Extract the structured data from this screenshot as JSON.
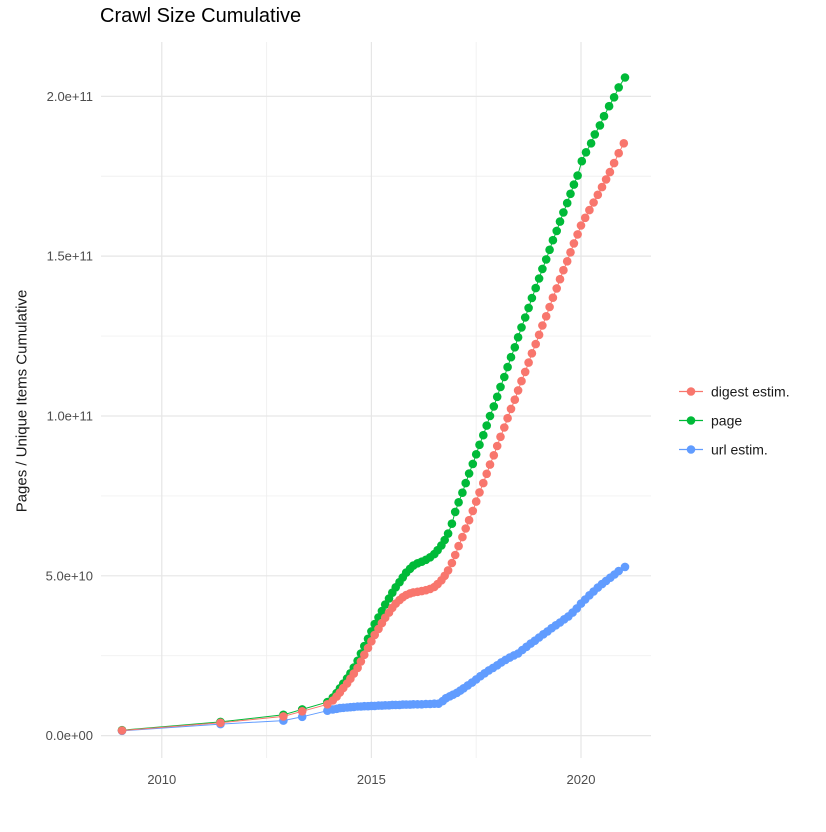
{
  "title": "Crawl Size Cumulative",
  "y_axis_title": "Pages / Unique Items Cumulative",
  "legend": {
    "position": "right",
    "items": [
      {
        "label": "digest estim.",
        "color": "#F8766D"
      },
      {
        "label": "page",
        "color": "#00BA38"
      },
      {
        "label": "url estim.",
        "color": "#619CFF"
      }
    ]
  },
  "colors": {
    "digest": "#F8766D",
    "page": "#00BA38",
    "url": "#619CFF",
    "grid_major": "#e6e6e6",
    "grid_minor": "#f0f0f0",
    "tick_text": "#4d4d4d",
    "title_text": "#000000"
  },
  "chart_data": {
    "type": "line",
    "title": "Crawl Size Cumulative",
    "xlabel": "",
    "ylabel": "Pages / Unique Items Cumulative",
    "grid": true,
    "legend_position": "right",
    "value_unit": "1e9 pages (values below are billions)",
    "xlim": [
      2008.55,
      2021.67
    ],
    "ylim_e9": [
      -7,
      217
    ],
    "x_ticks": {
      "values": [
        2010,
        2015,
        2020
      ],
      "labels": [
        "2010",
        "2015",
        "2020"
      ]
    },
    "x_minor": [
      2012.5,
      2017.5
    ],
    "y_ticks": {
      "values_e9": [
        0,
        50,
        100,
        150,
        200
      ],
      "labels": [
        "0.0e+00",
        "5.0e+10",
        "1.0e+11",
        "1.5e+11",
        "2.0e+11"
      ]
    },
    "y_minor_e9": [
      25,
      75,
      125,
      175
    ],
    "series": [
      {
        "name": "url estim.",
        "color": "#619CFF",
        "points": [
          [
            2009.05,
            1.5
          ],
          [
            2011.4,
            3.6
          ],
          [
            2012.9,
            4.7
          ],
          [
            2013.35,
            5.9
          ],
          [
            2013.95,
            7.8
          ],
          [
            2014.08,
            8.2
          ],
          [
            2014.17,
            8.4
          ],
          [
            2014.25,
            8.6
          ],
          [
            2014.33,
            8.7
          ],
          [
            2014.42,
            8.8
          ],
          [
            2014.5,
            8.9
          ],
          [
            2014.58,
            9.0
          ],
          [
            2014.67,
            9.1
          ],
          [
            2014.75,
            9.1
          ],
          [
            2014.83,
            9.2
          ],
          [
            2014.92,
            9.2
          ],
          [
            2015.0,
            9.3
          ],
          [
            2015.08,
            9.3
          ],
          [
            2015.17,
            9.4
          ],
          [
            2015.25,
            9.4
          ],
          [
            2015.33,
            9.5
          ],
          [
            2015.42,
            9.5
          ],
          [
            2015.5,
            9.6
          ],
          [
            2015.58,
            9.6
          ],
          [
            2015.67,
            9.6
          ],
          [
            2015.75,
            9.7
          ],
          [
            2015.83,
            9.7
          ],
          [
            2015.92,
            9.7
          ],
          [
            2016.0,
            9.8
          ],
          [
            2016.1,
            9.8
          ],
          [
            2016.2,
            9.8
          ],
          [
            2016.3,
            9.9
          ],
          [
            2016.4,
            9.9
          ],
          [
            2016.5,
            10.0
          ],
          [
            2016.6,
            10.0
          ],
          [
            2016.7,
            10.8
          ],
          [
            2016.78,
            11.7
          ],
          [
            2016.87,
            12.3
          ],
          [
            2016.95,
            12.8
          ],
          [
            2017.04,
            13.4
          ],
          [
            2017.12,
            14.1
          ],
          [
            2017.2,
            14.8
          ],
          [
            2017.3,
            15.7
          ],
          [
            2017.4,
            16.6
          ],
          [
            2017.5,
            17.6
          ],
          [
            2017.6,
            18.6
          ],
          [
            2017.7,
            19.5
          ],
          [
            2017.8,
            20.4
          ],
          [
            2017.9,
            21.2
          ],
          [
            2018.0,
            22.0
          ],
          [
            2018.1,
            22.9
          ],
          [
            2018.2,
            23.7
          ],
          [
            2018.3,
            24.4
          ],
          [
            2018.4,
            25.1
          ],
          [
            2018.5,
            25.7
          ],
          [
            2018.6,
            26.8
          ],
          [
            2018.7,
            27.8
          ],
          [
            2018.8,
            28.8
          ],
          [
            2018.9,
            29.7
          ],
          [
            2019.0,
            30.7
          ],
          [
            2019.1,
            31.7
          ],
          [
            2019.2,
            32.6
          ],
          [
            2019.3,
            33.6
          ],
          [
            2019.4,
            34.5
          ],
          [
            2019.5,
            35.4
          ],
          [
            2019.6,
            36.4
          ],
          [
            2019.7,
            37.3
          ],
          [
            2019.8,
            38.5
          ],
          [
            2019.9,
            39.8
          ],
          [
            2020.0,
            41.3
          ],
          [
            2020.1,
            42.6
          ],
          [
            2020.2,
            43.9
          ],
          [
            2020.3,
            45.1
          ],
          [
            2020.4,
            46.3
          ],
          [
            2020.5,
            47.4
          ],
          [
            2020.6,
            48.4
          ],
          [
            2020.7,
            49.4
          ],
          [
            2020.8,
            50.4
          ],
          [
            2020.9,
            51.5
          ],
          [
            2021.05,
            52.8
          ]
        ]
      },
      {
        "name": "page",
        "color": "#00BA38",
        "points": [
          [
            2009.05,
            1.7
          ],
          [
            2011.4,
            4.3
          ],
          [
            2012.9,
            6.5
          ],
          [
            2013.35,
            8.2
          ],
          [
            2013.95,
            10.5
          ],
          [
            2014.08,
            11.9
          ],
          [
            2014.17,
            13.3
          ],
          [
            2014.25,
            14.8
          ],
          [
            2014.33,
            16.3
          ],
          [
            2014.42,
            17.9
          ],
          [
            2014.5,
            19.5
          ],
          [
            2014.58,
            21.3
          ],
          [
            2014.67,
            23.4
          ],
          [
            2014.75,
            25.7
          ],
          [
            2014.83,
            28.0
          ],
          [
            2014.92,
            30.3
          ],
          [
            2015.0,
            32.6
          ],
          [
            2015.08,
            34.9
          ],
          [
            2015.17,
            37.0
          ],
          [
            2015.25,
            39.0
          ],
          [
            2015.33,
            41.0
          ],
          [
            2015.42,
            42.9
          ],
          [
            2015.5,
            44.7
          ],
          [
            2015.58,
            46.4
          ],
          [
            2015.67,
            48.0
          ],
          [
            2015.75,
            49.5
          ],
          [
            2015.83,
            51.0
          ],
          [
            2015.92,
            52.2
          ],
          [
            2016.0,
            53.2
          ],
          [
            2016.1,
            53.9
          ],
          [
            2016.2,
            54.4
          ],
          [
            2016.3,
            55.0
          ],
          [
            2016.4,
            55.8
          ],
          [
            2016.5,
            56.8
          ],
          [
            2016.58,
            58.0
          ],
          [
            2016.67,
            59.5
          ],
          [
            2016.75,
            61.2
          ],
          [
            2016.83,
            63.2
          ],
          [
            2016.92,
            66.3
          ],
          [
            2017.0,
            70.0
          ],
          [
            2017.08,
            73.0
          ],
          [
            2017.17,
            76.0
          ],
          [
            2017.25,
            79.0
          ],
          [
            2017.33,
            82.0
          ],
          [
            2017.42,
            85.0
          ],
          [
            2017.5,
            88.0
          ],
          [
            2017.58,
            91.0
          ],
          [
            2017.67,
            94.0
          ],
          [
            2017.75,
            97.0
          ],
          [
            2017.83,
            100.0
          ],
          [
            2017.92,
            103.0
          ],
          [
            2018.0,
            106.0
          ],
          [
            2018.08,
            109.1
          ],
          [
            2018.17,
            112.2
          ],
          [
            2018.25,
            115.3
          ],
          [
            2018.33,
            118.4
          ],
          [
            2018.42,
            121.5
          ],
          [
            2018.5,
            124.6
          ],
          [
            2018.58,
            127.7
          ],
          [
            2018.67,
            130.8
          ],
          [
            2018.75,
            133.8
          ],
          [
            2018.83,
            136.9
          ],
          [
            2018.92,
            140.0
          ],
          [
            2019.0,
            143.0
          ],
          [
            2019.08,
            146.0
          ],
          [
            2019.17,
            149.0
          ],
          [
            2019.25,
            152.0
          ],
          [
            2019.33,
            155.0
          ],
          [
            2019.42,
            157.9
          ],
          [
            2019.5,
            160.8
          ],
          [
            2019.58,
            163.7
          ],
          [
            2019.67,
            166.6
          ],
          [
            2019.75,
            169.5
          ],
          [
            2019.83,
            172.4
          ],
          [
            2019.92,
            175.2
          ],
          [
            2020.02,
            179.7
          ],
          [
            2020.12,
            182.5
          ],
          [
            2020.24,
            185.3
          ],
          [
            2020.33,
            188.1
          ],
          [
            2020.45,
            190.9
          ],
          [
            2020.55,
            193.8
          ],
          [
            2020.67,
            196.9
          ],
          [
            2020.79,
            199.7
          ],
          [
            2020.9,
            202.8
          ],
          [
            2021.05,
            205.9
          ]
        ]
      },
      {
        "name": "digest estim.",
        "color": "#F8766D",
        "points": [
          [
            2009.05,
            1.6
          ],
          [
            2011.4,
            4.0
          ],
          [
            2012.9,
            6.0
          ],
          [
            2013.35,
            7.6
          ],
          [
            2013.95,
            9.8
          ],
          [
            2014.08,
            11.0
          ],
          [
            2014.17,
            12.2
          ],
          [
            2014.25,
            13.5
          ],
          [
            2014.33,
            14.9
          ],
          [
            2014.42,
            16.3
          ],
          [
            2014.5,
            17.8
          ],
          [
            2014.58,
            19.4
          ],
          [
            2014.67,
            21.2
          ],
          [
            2014.75,
            23.2
          ],
          [
            2014.83,
            25.3
          ],
          [
            2014.92,
            27.4
          ],
          [
            2015.0,
            29.5
          ],
          [
            2015.08,
            31.5
          ],
          [
            2015.17,
            33.4
          ],
          [
            2015.25,
            35.2
          ],
          [
            2015.33,
            36.9
          ],
          [
            2015.42,
            38.5
          ],
          [
            2015.5,
            40.0
          ],
          [
            2015.58,
            41.3
          ],
          [
            2015.67,
            42.4
          ],
          [
            2015.75,
            43.3
          ],
          [
            2015.83,
            44.0
          ],
          [
            2015.92,
            44.5
          ],
          [
            2016.0,
            44.8
          ],
          [
            2016.1,
            45.0
          ],
          [
            2016.2,
            45.2
          ],
          [
            2016.3,
            45.5
          ],
          [
            2016.4,
            45.9
          ],
          [
            2016.5,
            46.5
          ],
          [
            2016.58,
            47.4
          ],
          [
            2016.67,
            48.6
          ],
          [
            2016.75,
            50.0
          ],
          [
            2016.83,
            51.7
          ],
          [
            2016.92,
            54.0
          ],
          [
            2017.0,
            56.5
          ],
          [
            2017.08,
            59.3
          ],
          [
            2017.17,
            62.1
          ],
          [
            2017.25,
            64.8
          ],
          [
            2017.33,
            67.4
          ],
          [
            2017.42,
            70.3
          ],
          [
            2017.5,
            73.2
          ],
          [
            2017.58,
            76.1
          ],
          [
            2017.67,
            79.0
          ],
          [
            2017.75,
            81.9
          ],
          [
            2017.83,
            84.8
          ],
          [
            2017.92,
            87.7
          ],
          [
            2018.0,
            90.6
          ],
          [
            2018.08,
            93.5
          ],
          [
            2018.17,
            96.4
          ],
          [
            2018.25,
            99.3
          ],
          [
            2018.33,
            102.2
          ],
          [
            2018.42,
            105.1
          ],
          [
            2018.5,
            108.0
          ],
          [
            2018.58,
            110.9
          ],
          [
            2018.67,
            113.8
          ],
          [
            2018.75,
            116.7
          ],
          [
            2018.83,
            119.6
          ],
          [
            2018.92,
            122.5
          ],
          [
            2019.0,
            125.4
          ],
          [
            2019.08,
            128.3
          ],
          [
            2019.17,
            131.2
          ],
          [
            2019.25,
            134.1
          ],
          [
            2019.33,
            137.0
          ],
          [
            2019.42,
            139.9
          ],
          [
            2019.5,
            142.8
          ],
          [
            2019.58,
            145.6
          ],
          [
            2019.67,
            148.4
          ],
          [
            2019.75,
            151.2
          ],
          [
            2019.83,
            154.0
          ],
          [
            2019.92,
            156.8
          ],
          [
            2020.0,
            159.6
          ],
          [
            2020.1,
            162.0
          ],
          [
            2020.2,
            164.4
          ],
          [
            2020.3,
            166.8
          ],
          [
            2020.4,
            169.2
          ],
          [
            2020.5,
            171.6
          ],
          [
            2020.6,
            174.0
          ],
          [
            2020.69,
            176.3
          ],
          [
            2020.79,
            179.1
          ],
          [
            2020.9,
            182.2
          ],
          [
            2021.02,
            185.3
          ]
        ]
      }
    ]
  }
}
